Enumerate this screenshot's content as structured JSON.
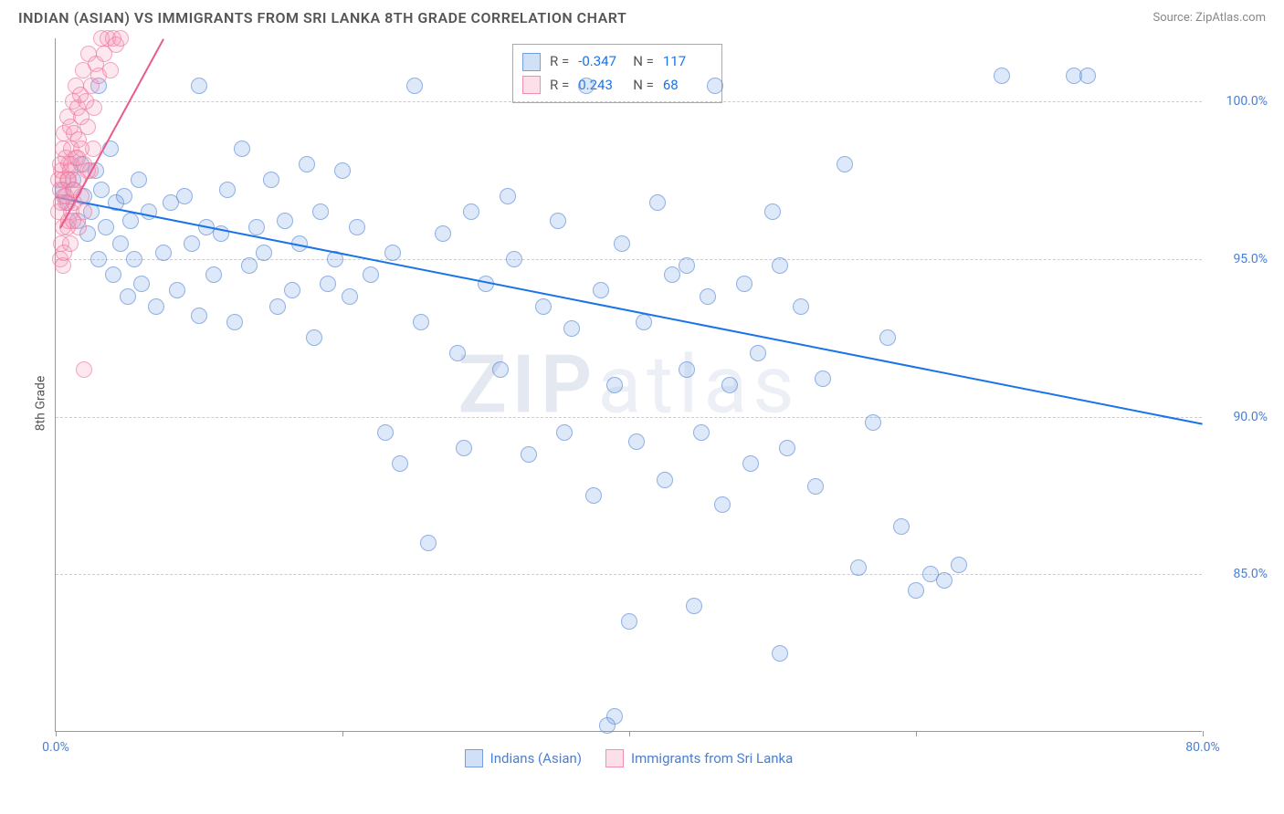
{
  "title": "INDIAN (ASIAN) VS IMMIGRANTS FROM SRI LANKA 8TH GRADE CORRELATION CHART",
  "source": "Source: ZipAtlas.com",
  "ylabel": "8th Grade",
  "watermark": {
    "prefix": "ZIP",
    "suffix": "atlas"
  },
  "chart": {
    "type": "scatter",
    "xlim": [
      0,
      80
    ],
    "ylim": [
      80,
      102
    ],
    "xticks": [
      0,
      20,
      40,
      60,
      80
    ],
    "xtick_labels": [
      "0.0%",
      "",
      "",
      "",
      "80.0%"
    ],
    "yticks": [
      85,
      90,
      95,
      100
    ],
    "ytick_labels": [
      "85.0%",
      "90.0%",
      "95.0%",
      "100.0%"
    ],
    "grid_color": "#cccccc",
    "axis_color": "#999999",
    "background_color": "#ffffff",
    "label_color": "#4a7fd4",
    "label_fontsize": 14,
    "marker_size": 18,
    "series": [
      {
        "name": "Indians (Asian)",
        "color_fill": "rgba(120,165,230,0.25)",
        "color_stroke": "rgba(80,130,210,0.55)",
        "R": "-0.347",
        "N": "117",
        "trend": {
          "x1": 0,
          "y1": 97.0,
          "x2": 80,
          "y2": 89.8,
          "color": "#1a73e8",
          "width": 2.5
        },
        "points": [
          [
            0.5,
            97.2
          ],
          [
            0.8,
            96.8
          ],
          [
            1.2,
            97.5
          ],
          [
            1.5,
            96.2
          ],
          [
            1.8,
            98.0
          ],
          [
            2.0,
            97.0
          ],
          [
            2.2,
            95.8
          ],
          [
            2.5,
            96.5
          ],
          [
            2.8,
            97.8
          ],
          [
            3.0,
            95.0
          ],
          [
            3.2,
            97.2
          ],
          [
            3.5,
            96.0
          ],
          [
            3.8,
            98.5
          ],
          [
            4.0,
            94.5
          ],
          [
            4.2,
            96.8
          ],
          [
            4.5,
            95.5
          ],
          [
            4.8,
            97.0
          ],
          [
            5.0,
            93.8
          ],
          [
            5.2,
            96.2
          ],
          [
            5.5,
            95.0
          ],
          [
            5.8,
            97.5
          ],
          [
            6.0,
            94.2
          ],
          [
            6.5,
            96.5
          ],
          [
            7.0,
            93.5
          ],
          [
            7.5,
            95.2
          ],
          [
            8.0,
            96.8
          ],
          [
            8.5,
            94.0
          ],
          [
            9.0,
            97.0
          ],
          [
            9.5,
            95.5
          ],
          [
            10.0,
            93.2
          ],
          [
            10.5,
            96.0
          ],
          [
            11.0,
            94.5
          ],
          [
            11.5,
            95.8
          ],
          [
            12.0,
            97.2
          ],
          [
            12.5,
            93.0
          ],
          [
            13.0,
            98.5
          ],
          [
            13.5,
            94.8
          ],
          [
            14.0,
            96.0
          ],
          [
            14.5,
            95.2
          ],
          [
            15.0,
            97.5
          ],
          [
            15.5,
            93.5
          ],
          [
            16.0,
            96.2
          ],
          [
            16.5,
            94.0
          ],
          [
            17.0,
            95.5
          ],
          [
            17.5,
            98.0
          ],
          [
            18.0,
            92.5
          ],
          [
            18.5,
            96.5
          ],
          [
            19.0,
            94.2
          ],
          [
            19.5,
            95.0
          ],
          [
            20.0,
            97.8
          ],
          [
            20.5,
            93.8
          ],
          [
            21.0,
            96.0
          ],
          [
            22.0,
            94.5
          ],
          [
            23.0,
            89.5
          ],
          [
            23.5,
            95.2
          ],
          [
            24.0,
            88.5
          ],
          [
            25.0,
            100.5
          ],
          [
            25.5,
            93.0
          ],
          [
            26.0,
            86.0
          ],
          [
            27.0,
            95.8
          ],
          [
            28.0,
            92.0
          ],
          [
            28.5,
            89.0
          ],
          [
            29.0,
            96.5
          ],
          [
            30.0,
            94.2
          ],
          [
            31.0,
            91.5
          ],
          [
            31.5,
            97.0
          ],
          [
            32.0,
            95.0
          ],
          [
            33.0,
            88.8
          ],
          [
            34.0,
            93.5
          ],
          [
            35.0,
            96.2
          ],
          [
            35.5,
            89.5
          ],
          [
            36.0,
            92.8
          ],
          [
            37.0,
            100.5
          ],
          [
            37.5,
            87.5
          ],
          [
            38.0,
            94.0
          ],
          [
            39.0,
            91.0
          ],
          [
            39.5,
            95.5
          ],
          [
            40.0,
            83.5
          ],
          [
            40.5,
            89.2
          ],
          [
            41.0,
            93.0
          ],
          [
            42.0,
            96.8
          ],
          [
            42.5,
            88.0
          ],
          [
            43.0,
            94.5
          ],
          [
            44.0,
            91.5
          ],
          [
            44.5,
            84.0
          ],
          [
            45.0,
            89.5
          ],
          [
            45.5,
            93.8
          ],
          [
            46.0,
            100.5
          ],
          [
            46.5,
            87.2
          ],
          [
            47.0,
            91.0
          ],
          [
            48.0,
            94.2
          ],
          [
            48.5,
            88.5
          ],
          [
            49.0,
            92.0
          ],
          [
            50.0,
            96.5
          ],
          [
            50.5,
            82.5
          ],
          [
            51.0,
            89.0
          ],
          [
            52.0,
            93.5
          ],
          [
            53.0,
            87.8
          ],
          [
            53.5,
            91.2
          ],
          [
            55.0,
            98.0
          ],
          [
            56.0,
            85.2
          ],
          [
            57.0,
            89.8
          ],
          [
            58.0,
            92.5
          ],
          [
            59.0,
            86.5
          ],
          [
            60.0,
            84.5
          ],
          [
            61.0,
            85.0
          ],
          [
            62.0,
            84.8
          ],
          [
            63.0,
            85.3
          ],
          [
            66.0,
            100.8
          ],
          [
            71.0,
            100.8
          ],
          [
            72.0,
            100.8
          ],
          [
            50.5,
            94.8
          ],
          [
            44,
            94.8
          ],
          [
            39,
            80.5
          ],
          [
            38.5,
            80.2
          ],
          [
            10,
            100.5
          ],
          [
            3,
            100.5
          ]
        ]
      },
      {
        "name": "Immigrants from Sri Lanka",
        "color_fill": "rgba(245,150,180,0.22)",
        "color_stroke": "rgba(235,110,150,0.55)",
        "R": "0.243",
        "N": "68",
        "trend": {
          "x1": 0.3,
          "y1": 96.0,
          "x2": 7.5,
          "y2": 102.0,
          "color": "#e85a8a",
          "width": 2.5
        },
        "points": [
          [
            0.2,
            96.5
          ],
          [
            0.3,
            97.2
          ],
          [
            0.4,
            97.8
          ],
          [
            0.5,
            96.0
          ],
          [
            0.5,
            98.5
          ],
          [
            0.6,
            97.0
          ],
          [
            0.6,
            99.0
          ],
          [
            0.7,
            96.8
          ],
          [
            0.7,
            98.2
          ],
          [
            0.8,
            97.5
          ],
          [
            0.8,
            99.5
          ],
          [
            0.9,
            96.2
          ],
          [
            0.9,
            98.0
          ],
          [
            1.0,
            97.8
          ],
          [
            1.0,
            99.2
          ],
          [
            1.1,
            96.5
          ],
          [
            1.1,
            98.5
          ],
          [
            1.2,
            97.2
          ],
          [
            1.2,
            100.0
          ],
          [
            1.3,
            96.8
          ],
          [
            1.3,
            99.0
          ],
          [
            1.4,
            98.2
          ],
          [
            1.4,
            100.5
          ],
          [
            1.5,
            97.5
          ],
          [
            1.5,
            99.8
          ],
          [
            1.6,
            96.0
          ],
          [
            1.6,
            98.8
          ],
          [
            1.7,
            100.2
          ],
          [
            1.8,
            97.0
          ],
          [
            1.8,
            99.5
          ],
          [
            1.9,
            101.0
          ],
          [
            2.0,
            96.5
          ],
          [
            2.0,
            98.0
          ],
          [
            2.1,
            100.0
          ],
          [
            2.2,
            99.2
          ],
          [
            2.3,
            101.5
          ],
          [
            2.4,
            97.8
          ],
          [
            2.5,
            100.5
          ],
          [
            2.6,
            98.5
          ],
          [
            2.7,
            99.8
          ],
          [
            2.8,
            101.2
          ],
          [
            3.0,
            100.8
          ],
          [
            3.2,
            102.0
          ],
          [
            3.4,
            101.5
          ],
          [
            3.6,
            102.0
          ],
          [
            3.8,
            101.0
          ],
          [
            4.0,
            102.0
          ],
          [
            4.2,
            101.8
          ],
          [
            4.5,
            102.0
          ],
          [
            2.0,
            91.5
          ],
          [
            0.3,
            95.0
          ],
          [
            0.4,
            95.5
          ],
          [
            0.5,
            94.8
          ],
          [
            0.6,
            95.2
          ],
          [
            0.8,
            96.0
          ],
          [
            1.0,
            95.5
          ],
          [
            1.2,
            96.2
          ],
          [
            0.2,
            97.5
          ],
          [
            0.3,
            98.0
          ],
          [
            0.4,
            96.8
          ],
          [
            0.5,
            97.5
          ],
          [
            0.7,
            97.0
          ],
          [
            0.9,
            97.5
          ],
          [
            1.1,
            98.0
          ],
          [
            1.3,
            97.2
          ],
          [
            1.5,
            98.2
          ],
          [
            1.8,
            98.5
          ],
          [
            2.2,
            97.8
          ]
        ]
      }
    ],
    "stats_labels": {
      "R": "R =",
      "N": "N ="
    },
    "legend": [
      {
        "label": "Indians (Asian)",
        "swatch": "blue"
      },
      {
        "label": "Immigrants from Sri Lanka",
        "swatch": "pink"
      }
    ]
  }
}
